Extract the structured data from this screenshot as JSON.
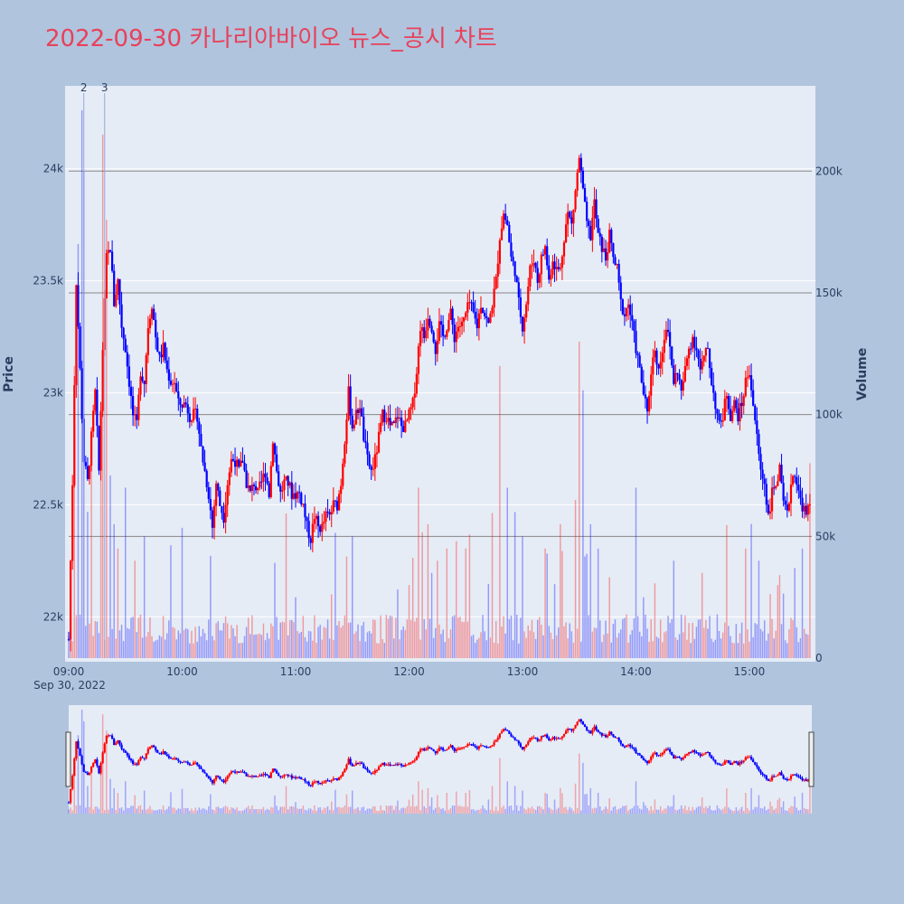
{
  "title": "2022-09-30 카나리아바이오 뉴스_공시 차트",
  "colors": {
    "up": "#ff0000",
    "down": "#0000ff",
    "background": "#b0c4de",
    "plot": "#e5ecf6"
  },
  "chart_data": {
    "type": "candlestick",
    "date_label": "Sep 30, 2022",
    "ylabel": "Price",
    "y2label": "Volume",
    "price_ticks": [
      "22k",
      "22.5k",
      "23k",
      "23.5k",
      "24k"
    ],
    "price_tick_values": [
      22000,
      22500,
      23000,
      23500,
      24000
    ],
    "volume_ticks": [
      "0",
      "50k",
      "100k",
      "150k",
      "200k"
    ],
    "volume_tick_values": [
      0,
      50000,
      100000,
      150000,
      200000
    ],
    "x_ticks": [
      "09:00",
      "10:00",
      "11:00",
      "12:00",
      "13:00",
      "14:00",
      "15:00"
    ],
    "x_tick_minutes": [
      0,
      60,
      120,
      180,
      240,
      300,
      360
    ],
    "price_range": [
      21800,
      24370
    ],
    "volume_range": [
      0,
      235000
    ],
    "time_range_minutes": [
      0,
      393
    ],
    "annotations": [
      {
        "text": "2",
        "minute": 8
      },
      {
        "text": "3",
        "minute": 19
      }
    ],
    "price_path": [
      [
        0,
        21900
      ],
      [
        2,
        22600
      ],
      [
        4,
        23500
      ],
      [
        6,
        23100
      ],
      [
        8,
        22700
      ],
      [
        10,
        22600
      ],
      [
        12,
        22800
      ],
      [
        14,
        23000
      ],
      [
        16,
        22650
      ],
      [
        18,
        23200
      ],
      [
        20,
        23600
      ],
      [
        22,
        23650
      ],
      [
        24,
        23400
      ],
      [
        26,
        23500
      ],
      [
        28,
        23300
      ],
      [
        30,
        23200
      ],
      [
        32,
        23050
      ],
      [
        34,
        22900
      ],
      [
        36,
        22850
      ],
      [
        38,
        23100
      ],
      [
        40,
        23050
      ],
      [
        42,
        23300
      ],
      [
        44,
        23400
      ],
      [
        46,
        23250
      ],
      [
        48,
        23150
      ],
      [
        50,
        23200
      ],
      [
        52,
        23100
      ],
      [
        54,
        23050
      ],
      [
        56,
        23050
      ],
      [
        58,
        22950
      ],
      [
        60,
        22950
      ],
      [
        62,
        22950
      ],
      [
        64,
        22900
      ],
      [
        66,
        22900
      ],
      [
        68,
        22900
      ],
      [
        70,
        22750
      ],
      [
        72,
        22650
      ],
      [
        74,
        22550
      ],
      [
        76,
        22400
      ],
      [
        78,
        22600
      ],
      [
        80,
        22500
      ],
      [
        82,
        22450
      ],
      [
        84,
        22600
      ],
      [
        86,
        22700
      ],
      [
        88,
        22700
      ],
      [
        90,
        22650
      ],
      [
        92,
        22700
      ],
      [
        94,
        22600
      ],
      [
        96,
        22550
      ],
      [
        98,
        22600
      ],
      [
        100,
        22550
      ],
      [
        102,
        22600
      ],
      [
        104,
        22650
      ],
      [
        106,
        22550
      ],
      [
        108,
        22800
      ],
      [
        110,
        22650
      ],
      [
        112,
        22550
      ],
      [
        114,
        22600
      ],
      [
        116,
        22600
      ],
      [
        118,
        22550
      ],
      [
        120,
        22550
      ],
      [
        122,
        22550
      ],
      [
        124,
        22500
      ],
      [
        126,
        22400
      ],
      [
        128,
        22350
      ],
      [
        130,
        22450
      ],
      [
        132,
        22400
      ],
      [
        134,
        22400
      ],
      [
        136,
        22450
      ],
      [
        138,
        22450
      ],
      [
        140,
        22500
      ],
      [
        142,
        22500
      ],
      [
        144,
        22600
      ],
      [
        146,
        22800
      ],
      [
        148,
        23000
      ],
      [
        150,
        22850
      ],
      [
        152,
        22900
      ],
      [
        154,
        22950
      ],
      [
        156,
        22800
      ],
      [
        158,
        22700
      ],
      [
        160,
        22650
      ],
      [
        162,
        22700
      ],
      [
        164,
        22800
      ],
      [
        166,
        22900
      ],
      [
        168,
        22900
      ],
      [
        170,
        22850
      ],
      [
        172,
        22850
      ],
      [
        174,
        22900
      ],
      [
        176,
        22850
      ],
      [
        178,
        22850
      ],
      [
        180,
        22900
      ],
      [
        182,
        22950
      ],
      [
        184,
        23100
      ],
      [
        186,
        23300
      ],
      [
        188,
        23250
      ],
      [
        190,
        23350
      ],
      [
        192,
        23300
      ],
      [
        194,
        23200
      ],
      [
        196,
        23300
      ],
      [
        198,
        23250
      ],
      [
        200,
        23300
      ],
      [
        202,
        23350
      ],
      [
        204,
        23250
      ],
      [
        206,
        23300
      ],
      [
        208,
        23300
      ],
      [
        210,
        23350
      ],
      [
        212,
        23400
      ],
      [
        214,
        23350
      ],
      [
        216,
        23300
      ],
      [
        218,
        23400
      ],
      [
        220,
        23350
      ],
      [
        222,
        23300
      ],
      [
        224,
        23400
      ],
      [
        226,
        23500
      ],
      [
        228,
        23700
      ],
      [
        230,
        23800
      ],
      [
        232,
        23750
      ],
      [
        234,
        23600
      ],
      [
        236,
        23550
      ],
      [
        238,
        23400
      ],
      [
        240,
        23300
      ],
      [
        242,
        23400
      ],
      [
        244,
        23550
      ],
      [
        246,
        23600
      ],
      [
        248,
        23500
      ],
      [
        250,
        23600
      ],
      [
        252,
        23650
      ],
      [
        254,
        23500
      ],
      [
        256,
        23600
      ],
      [
        258,
        23550
      ],
      [
        260,
        23550
      ],
      [
        262,
        23700
      ],
      [
        264,
        23800
      ],
      [
        266,
        23750
      ],
      [
        268,
        23900
      ],
      [
        270,
        24050
      ],
      [
        272,
        23900
      ],
      [
        274,
        23750
      ],
      [
        276,
        23700
      ],
      [
        278,
        23850
      ],
      [
        280,
        23700
      ],
      [
        282,
        23650
      ],
      [
        284,
        23600
      ],
      [
        286,
        23700
      ],
      [
        288,
        23600
      ],
      [
        290,
        23550
      ],
      [
        292,
        23400
      ],
      [
        294,
        23350
      ],
      [
        296,
        23400
      ],
      [
        298,
        23300
      ],
      [
        300,
        23200
      ],
      [
        302,
        23100
      ],
      [
        304,
        23000
      ],
      [
        306,
        22900
      ],
      [
        308,
        23100
      ],
      [
        310,
        23200
      ],
      [
        312,
        23100
      ],
      [
        314,
        23200
      ],
      [
        316,
        23300
      ],
      [
        318,
        23200
      ],
      [
        320,
        23050
      ],
      [
        322,
        23100
      ],
      [
        324,
        23000
      ],
      [
        326,
        23100
      ],
      [
        328,
        23200
      ],
      [
        330,
        23250
      ],
      [
        332,
        23200
      ],
      [
        334,
        23100
      ],
      [
        336,
        23150
      ],
      [
        338,
        23200
      ],
      [
        340,
        23050
      ],
      [
        342,
        22950
      ],
      [
        344,
        22850
      ],
      [
        346,
        22900
      ],
      [
        348,
        23000
      ],
      [
        350,
        22900
      ],
      [
        352,
        22950
      ],
      [
        354,
        22900
      ],
      [
        356,
        22950
      ],
      [
        358,
        23050
      ],
      [
        360,
        23100
      ],
      [
        362,
        22950
      ],
      [
        364,
        22800
      ],
      [
        366,
        22650
      ],
      [
        368,
        22600
      ],
      [
        370,
        22450
      ],
      [
        372,
        22550
      ],
      [
        374,
        22600
      ],
      [
        376,
        22650
      ],
      [
        378,
        22500
      ],
      [
        380,
        22450
      ],
      [
        382,
        22600
      ],
      [
        384,
        22650
      ],
      [
        386,
        22550
      ],
      [
        388,
        22500
      ],
      [
        390,
        22450
      ],
      [
        392,
        22500
      ]
    ],
    "volume_peaks": [
      [
        3,
        120000
      ],
      [
        5,
        170000
      ],
      [
        7,
        225000
      ],
      [
        8,
        200000
      ],
      [
        10,
        60000
      ],
      [
        12,
        90000
      ],
      [
        17,
        85000
      ],
      [
        18,
        215000
      ],
      [
        20,
        180000
      ],
      [
        22,
        75000
      ],
      [
        24,
        55000
      ],
      [
        26,
        45000
      ],
      [
        30,
        70000
      ],
      [
        35,
        40000
      ],
      [
        40,
        50000
      ],
      [
        60,
        40000
      ],
      [
        75,
        42000
      ],
      [
        120,
        25000
      ],
      [
        150,
        50000
      ],
      [
        180,
        30000
      ],
      [
        185,
        70000
      ],
      [
        190,
        55000
      ],
      [
        195,
        40000
      ],
      [
        200,
        45000
      ],
      [
        205,
        48000
      ],
      [
        210,
        45000
      ],
      [
        228,
        120000
      ],
      [
        232,
        70000
      ],
      [
        236,
        60000
      ],
      [
        240,
        50000
      ],
      [
        252,
        45000
      ],
      [
        260,
        55000
      ],
      [
        268,
        65000
      ],
      [
        270,
        130000
      ],
      [
        272,
        110000
      ],
      [
        276,
        55000
      ],
      [
        280,
        45000
      ],
      [
        300,
        70000
      ],
      [
        320,
        40000
      ],
      [
        335,
        35000
      ],
      [
        358,
        45000
      ],
      [
        365,
        40000
      ],
      [
        375,
        30000
      ],
      [
        388,
        45000
      ],
      [
        392,
        80000
      ]
    ]
  }
}
